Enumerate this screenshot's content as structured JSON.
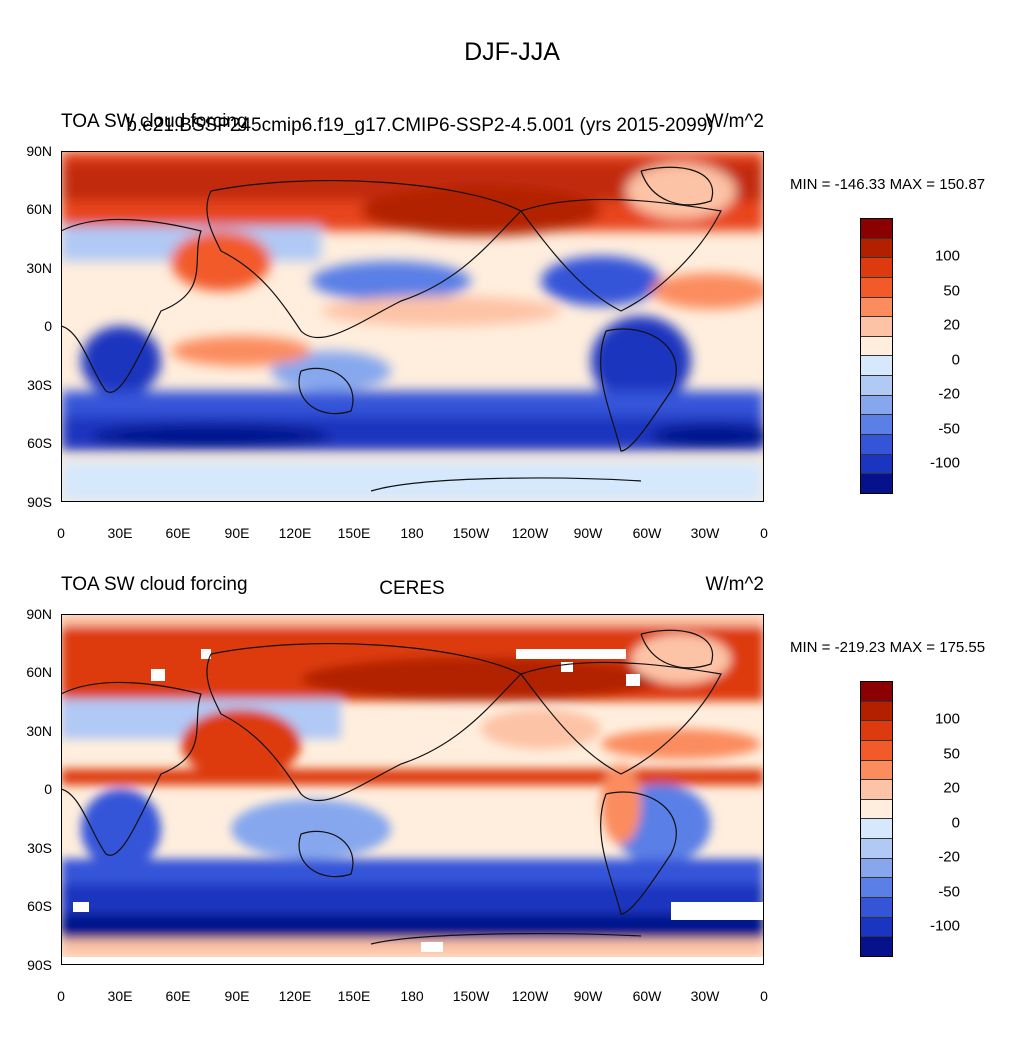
{
  "title": "DJF-JJA",
  "panels": [
    {
      "left_label": "TOA SW cloud forcing",
      "center_label": "b.e21.BSSP245cmip6.f19_g17.CMIP6-SSP2-4.5.001 (yrs 2015-2099)",
      "right_label": "W/m^2",
      "minmax": "MIN = -146.33 MAX = 150.87",
      "colorbar_colors": [
        "#8b0000",
        "#b22000",
        "#dd3a10",
        "#f25a2a",
        "#fb8c5e",
        "#fdc3a6",
        "#ffeedd",
        "#d6e8fb",
        "#b0c9f5",
        "#86a7ee",
        "#5a7fe6",
        "#3555d9",
        "#1a35bf",
        "#05128c"
      ],
      "colorbar_labels": [
        "100",
        "50",
        "20",
        "0",
        "-20",
        "-50",
        "-100"
      ]
    },
    {
      "left_label": "TOA SW cloud forcing",
      "center_label": "CERES",
      "right_label": "W/m^2",
      "minmax": "MIN = -219.23 MAX = 175.55",
      "colorbar_colors": [
        "#8b0000",
        "#b22000",
        "#dd3a10",
        "#f25a2a",
        "#fb8c5e",
        "#fdc3a6",
        "#ffeedd",
        "#d6e8fb",
        "#b0c9f5",
        "#86a7ee",
        "#5a7fe6",
        "#3555d9",
        "#1a35bf",
        "#05128c"
      ],
      "colorbar_labels": [
        "100",
        "50",
        "20",
        "0",
        "-20",
        "-50",
        "-100"
      ]
    }
  ],
  "lat_ticks": [
    "90N",
    "60N",
    "30N",
    "0",
    "30S",
    "60S",
    "90S"
  ],
  "lon_ticks": [
    "0",
    "30E",
    "60E",
    "90E",
    "120E",
    "150E",
    "180",
    "150W",
    "120W",
    "90W",
    "60W",
    "30W",
    "0"
  ]
}
